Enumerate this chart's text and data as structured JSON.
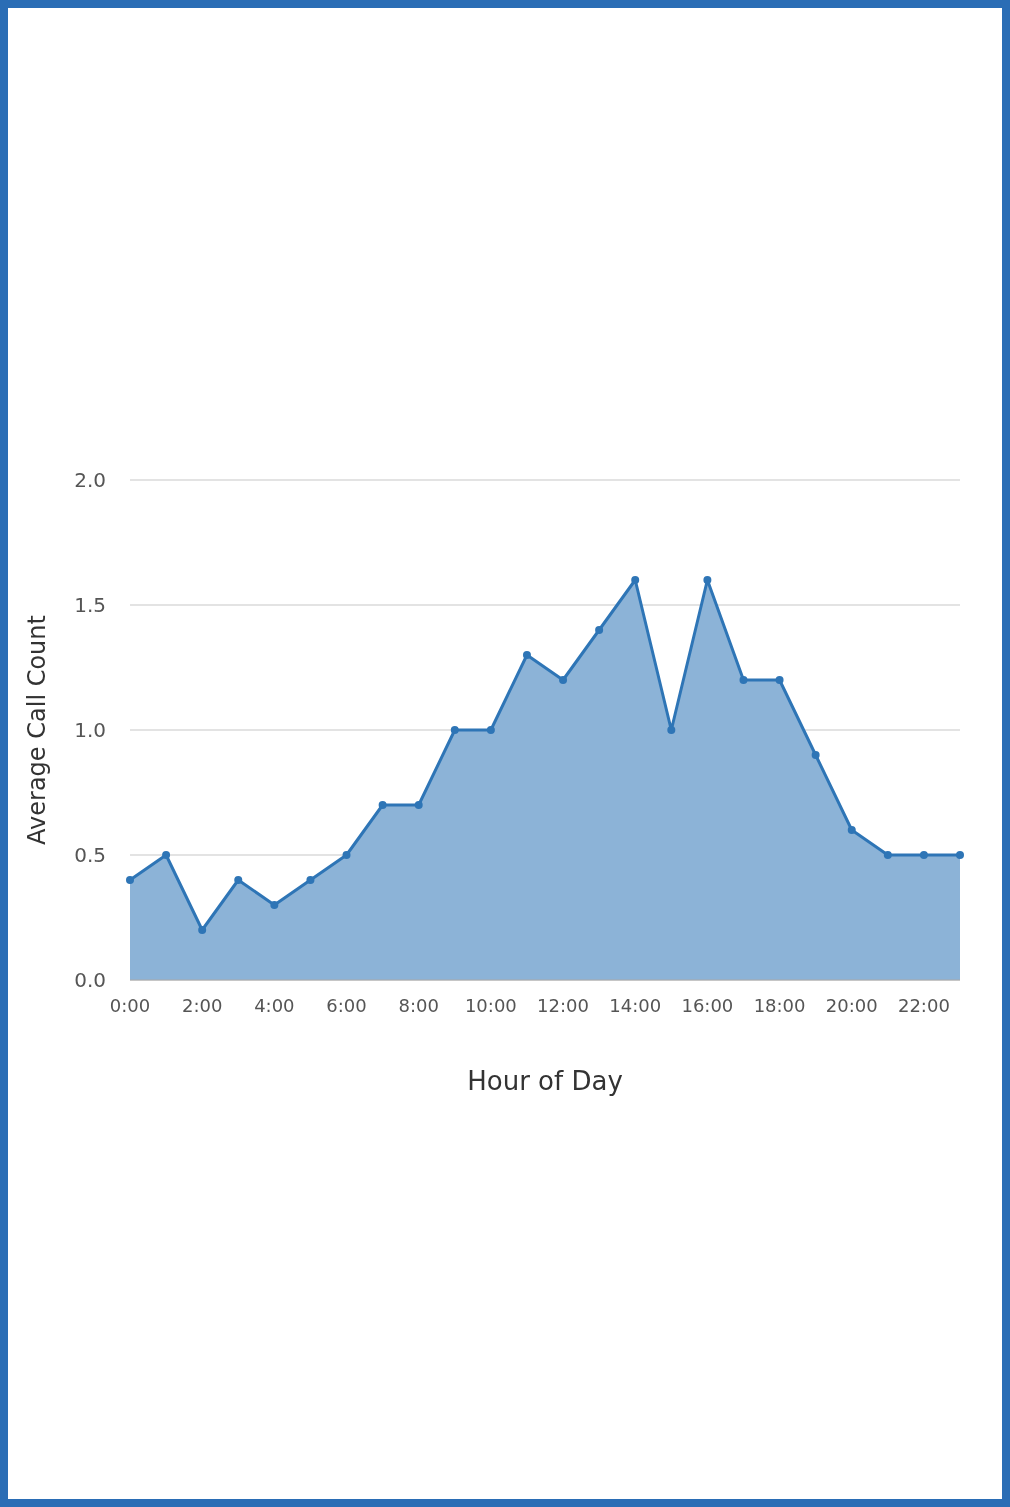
{
  "chart_data": {
    "type": "area",
    "xlabel": "Hour of Day",
    "ylabel": "Average Call Count",
    "categories": [
      "0:00",
      null,
      "2:00",
      null,
      "4:00",
      null,
      "6:00",
      null,
      "8:00",
      null,
      "10:00",
      null,
      "12:00",
      null,
      "14:00",
      null,
      "16:00",
      null,
      "18:00",
      null,
      "20:00",
      null,
      "22:00",
      null
    ],
    "series": [
      {
        "color": "#2e75b6",
        "values": [
          0.4,
          0.5,
          0.2,
          0.4,
          0.3,
          0.4,
          0.5,
          0.7,
          0.7,
          1.0,
          1.0,
          1.3,
          1.2,
          1.4,
          1.6,
          1.0,
          1.6,
          1.2,
          1.2,
          0.9,
          0.6,
          0.5,
          0.5,
          0.5
        ]
      }
    ],
    "ylim": [
      0,
      2
    ],
    "yticks": [
      {
        "value": 0,
        "label": "0.0"
      },
      {
        "value": 0.5,
        "label": "0.5"
      },
      {
        "value": 1,
        "label": "1.0"
      },
      {
        "value": 1.5,
        "label": "1.5"
      },
      {
        "value": 2,
        "label": "2.0"
      }
    ],
    "grid": "y",
    "marker": "circle"
  }
}
